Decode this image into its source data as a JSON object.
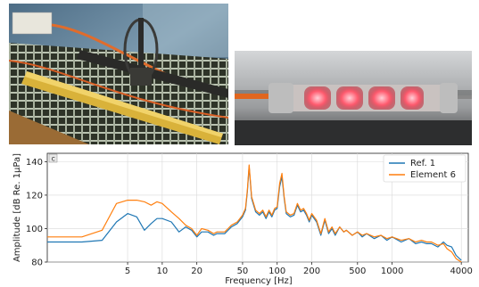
{
  "photos": [
    {
      "name": "hydrophone-array-photo"
    },
    {
      "name": "lit-transducer-tube-photo"
    }
  ],
  "chart_data": {
    "type": "line",
    "panel_label": "c",
    "title": "",
    "xlabel": "Frequency [Hz]",
    "ylabel": "Amplitude [dB Re. 1µPa]",
    "xscale": "log",
    "xlim": [
      1,
      4600
    ],
    "ylim": [
      80,
      145
    ],
    "xticks": [
      5,
      10,
      20,
      50,
      100,
      200,
      500,
      1000,
      4000
    ],
    "xtick_labels": [
      "5",
      "10",
      "20",
      "50",
      "100",
      "200",
      "500",
      "1000",
      "4000"
    ],
    "yticks": [
      80,
      100,
      120,
      140
    ],
    "ytick_labels": [
      "80",
      "100",
      "120",
      "140"
    ],
    "grid": true,
    "legend_position": "top-right",
    "series": [
      {
        "name": "Ref. 1",
        "color": "#1f77b4",
        "x": [
          1,
          2,
          3,
          4,
          5,
          6,
          7,
          8,
          9,
          10,
          12,
          14,
          16,
          18,
          20,
          22,
          25,
          28,
          30,
          35,
          40,
          45,
          50,
          53,
          55,
          57,
          60,
          65,
          70,
          75,
          80,
          85,
          90,
          95,
          100,
          105,
          110,
          115,
          120,
          130,
          140,
          150,
          160,
          170,
          180,
          190,
          200,
          220,
          240,
          260,
          280,
          300,
          320,
          350,
          380,
          400,
          450,
          500,
          550,
          600,
          700,
          800,
          900,
          1000,
          1200,
          1400,
          1600,
          1800,
          2000,
          2200,
          2500,
          2800,
          3000,
          3300,
          3600,
          4000
        ],
        "values": [
          92,
          92,
          93,
          104,
          109,
          107,
          99,
          103,
          106,
          106,
          104,
          98,
          101,
          99,
          95,
          98,
          98,
          96,
          97,
          97,
          101,
          103,
          107,
          111,
          122,
          137,
          118,
          110,
          108,
          110,
          106,
          110,
          107,
          111,
          112,
          125,
          131,
          118,
          109,
          107,
          108,
          114,
          110,
          111,
          108,
          104,
          108,
          104,
          96,
          105,
          97,
          100,
          96,
          101,
          98,
          99,
          96,
          98,
          95,
          97,
          94,
          96,
          93,
          95,
          92,
          94,
          91,
          92,
          91,
          91,
          89,
          92,
          90,
          89,
          84,
          81
        ]
      },
      {
        "name": "Element 6",
        "color": "#ff7f0e",
        "x": [
          1,
          2,
          3,
          4,
          5,
          6,
          7,
          8,
          9,
          10,
          12,
          14,
          16,
          18,
          20,
          22,
          25,
          28,
          30,
          35,
          40,
          45,
          50,
          53,
          55,
          57,
          60,
          65,
          70,
          75,
          80,
          85,
          90,
          95,
          100,
          105,
          110,
          115,
          120,
          130,
          140,
          150,
          160,
          170,
          180,
          190,
          200,
          220,
          240,
          260,
          280,
          300,
          320,
          350,
          380,
          400,
          450,
          500,
          550,
          600,
          700,
          800,
          900,
          1000,
          1200,
          1400,
          1600,
          1800,
          2000,
          2200,
          2500,
          2800,
          3000,
          3300,
          3600,
          4000
        ],
        "values": [
          95,
          95,
          99,
          115,
          117,
          117,
          116,
          114,
          116,
          115,
          110,
          106,
          102,
          100,
          96,
          100,
          99,
          97,
          98,
          98,
          102,
          104,
          108,
          112,
          123,
          138,
          119,
          111,
          109,
          111,
          107,
          111,
          108,
          112,
          113,
          127,
          133,
          119,
          110,
          108,
          109,
          115,
          111,
          112,
          109,
          105,
          109,
          105,
          97,
          106,
          98,
          101,
          97,
          101,
          98,
          99,
          96,
          98,
          96,
          97,
          95,
          96,
          94,
          95,
          93,
          94,
          92,
          93,
          92,
          92,
          90,
          91,
          88,
          86,
          82,
          80
        ]
      }
    ]
  }
}
